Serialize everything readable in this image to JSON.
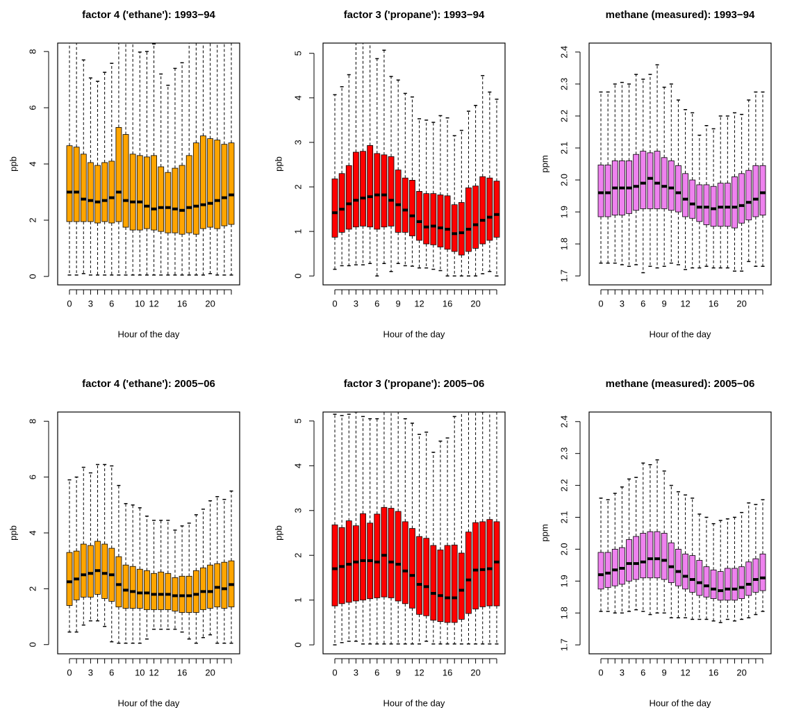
{
  "chart_data": [
    {
      "type": "boxplot",
      "title": "factor 4 ('ethane'): 1993−94",
      "x_label": "Hour of the day",
      "y_label": "ppb",
      "color": "#FFA500",
      "categories": [
        "0",
        null,
        null,
        "3",
        null,
        null,
        "6",
        null,
        null,
        null,
        "10",
        null,
        "12",
        null,
        null,
        null,
        "16",
        null,
        null,
        null,
        "20",
        null,
        null,
        null
      ],
      "ylim": [
        -0.3,
        8.3
      ],
      "yticks": [
        0,
        2,
        4,
        6,
        8
      ],
      "boxes": {
        "whisker_low": [
          0.05,
          0.05,
          0.1,
          0.05,
          0.05,
          0.05,
          0.05,
          0.05,
          0.05,
          0.05,
          0.05,
          0.05,
          0.05,
          0.05,
          0.05,
          0.05,
          0.05,
          0.05,
          0.05,
          0.05,
          0.1,
          0.05,
          0.05,
          0.05
        ],
        "q1": [
          1.95,
          1.95,
          1.95,
          1.95,
          1.9,
          1.95,
          1.9,
          1.95,
          1.75,
          1.65,
          1.65,
          1.7,
          1.65,
          1.6,
          1.55,
          1.55,
          1.5,
          1.55,
          1.5,
          1.7,
          1.75,
          1.7,
          1.8,
          1.85
        ],
        "median": [
          3.0,
          3.0,
          2.75,
          2.7,
          2.65,
          2.7,
          2.8,
          3.0,
          2.7,
          2.65,
          2.65,
          2.5,
          2.4,
          2.45,
          2.45,
          2.4,
          2.35,
          2.45,
          2.5,
          2.55,
          2.6,
          2.7,
          2.8,
          2.9
        ],
        "q3": [
          4.65,
          4.6,
          4.35,
          4.05,
          3.95,
          4.05,
          4.1,
          5.3,
          5.05,
          4.35,
          4.3,
          4.25,
          4.3,
          3.9,
          3.7,
          3.85,
          3.95,
          4.3,
          4.75,
          5.0,
          4.9,
          4.85,
          4.7,
          4.75
        ],
        "whisker_high": [
          8.6,
          8.6,
          7.7,
          7.06,
          6.94,
          7.26,
          7.58,
          8.6,
          8.6,
          8.6,
          7.98,
          8.0,
          8.27,
          7.2,
          6.8,
          7.4,
          7.6,
          8.6,
          8.6,
          8.6,
          8.6,
          8.6,
          8.6,
          8.6
        ]
      }
    },
    {
      "type": "boxplot",
      "title": "factor 3 ('propane'): 1993−94",
      "x_label": "Hour of the day",
      "y_label": "ppb",
      "color": "#FF0000",
      "categories": [
        "0",
        null,
        null,
        "3",
        null,
        null,
        "6",
        null,
        null,
        "9",
        null,
        null,
        "12",
        null,
        null,
        null,
        "16",
        null,
        null,
        null,
        "20",
        null,
        null,
        null
      ],
      "ylim": [
        -0.2,
        5.23
      ],
      "yticks": [
        0,
        1,
        2,
        3,
        4,
        5
      ],
      "boxes": {
        "whisker_low": [
          0.15,
          0.23,
          0.23,
          0.25,
          0.25,
          0.28,
          0.0,
          0.28,
          0.1,
          0.28,
          0.23,
          0.22,
          0.18,
          0.18,
          0.15,
          0.12,
          0.0,
          0.0,
          0.0,
          0.0,
          0.0,
          0.05,
          0.1,
          0.0
        ],
        "q1": [
          0.87,
          0.98,
          1.05,
          1.1,
          1.12,
          1.1,
          1.05,
          1.1,
          1.12,
          0.98,
          0.98,
          0.9,
          0.8,
          0.72,
          0.7,
          0.65,
          0.6,
          0.55,
          0.47,
          0.55,
          0.62,
          0.72,
          0.8,
          0.87
        ],
        "median": [
          1.42,
          1.5,
          1.62,
          1.7,
          1.75,
          1.78,
          1.82,
          1.82,
          1.7,
          1.6,
          1.48,
          1.35,
          1.22,
          1.1,
          1.12,
          1.08,
          1.05,
          0.95,
          0.97,
          1.05,
          1.15,
          1.25,
          1.32,
          1.38
        ],
        "q3": [
          2.18,
          2.3,
          2.48,
          2.78,
          2.8,
          2.93,
          2.75,
          2.72,
          2.68,
          2.38,
          2.2,
          2.15,
          1.9,
          1.85,
          1.85,
          1.82,
          1.8,
          1.6,
          1.65,
          1.98,
          2.02,
          2.23,
          2.2,
          2.13
        ],
        "whisker_high": [
          4.07,
          4.25,
          4.52,
          5.3,
          5.3,
          5.3,
          4.88,
          5.07,
          4.48,
          4.4,
          4.1,
          4.02,
          3.53,
          3.5,
          3.45,
          3.6,
          3.55,
          3.15,
          3.27,
          3.7,
          3.83,
          4.5,
          4.13,
          3.97
        ]
      }
    },
    {
      "type": "boxplot",
      "title": "methane (measured): 1993−94",
      "x_label": "Hour of the day",
      "y_label": "ppm",
      "color": "#EE82EE",
      "categories": [
        "0",
        null,
        null,
        "3",
        null,
        null,
        "6",
        null,
        null,
        "9",
        null,
        null,
        "12",
        null,
        null,
        null,
        "16",
        null,
        null,
        null,
        "20",
        null,
        null,
        null
      ],
      "ylim": [
        1.672,
        2.428
      ],
      "yticks": [
        1.7,
        1.8,
        1.9,
        {
          "value": 2,
          "label": "2.0"
        },
        2.1,
        2.2,
        2.3,
        2.4
      ],
      "boxes": {
        "whisker_low": [
          1.74,
          1.74,
          1.74,
          1.735,
          1.73,
          1.735,
          1.71,
          1.73,
          1.725,
          1.73,
          1.74,
          1.735,
          1.72,
          1.725,
          1.725,
          1.73,
          1.725,
          1.725,
          1.725,
          1.715,
          1.715,
          1.745,
          1.73,
          1.73
        ],
        "q1": [
          1.885,
          1.885,
          1.89,
          1.89,
          1.895,
          1.905,
          1.91,
          1.91,
          1.91,
          1.91,
          1.905,
          1.9,
          1.885,
          1.88,
          1.87,
          1.86,
          1.855,
          1.855,
          1.855,
          1.85,
          1.865,
          1.875,
          1.885,
          1.89
        ],
        "median": [
          1.96,
          1.96,
          1.975,
          1.975,
          1.975,
          1.98,
          1.99,
          2.005,
          1.99,
          1.98,
          1.975,
          1.96,
          1.94,
          1.925,
          1.915,
          1.915,
          1.91,
          1.915,
          1.915,
          1.915,
          1.92,
          1.93,
          1.94,
          1.96
        ],
        "q3": [
          2.047,
          2.047,
          2.06,
          2.06,
          2.06,
          2.08,
          2.09,
          2.085,
          2.09,
          2.07,
          2.06,
          2.045,
          2.02,
          2.0,
          1.985,
          1.985,
          1.98,
          1.99,
          1.99,
          2.01,
          2.02,
          2.03,
          2.045,
          2.045
        ],
        "whisker_high": [
          2.275,
          2.275,
          2.3,
          2.305,
          2.3,
          2.33,
          2.315,
          2.33,
          2.36,
          2.29,
          2.3,
          2.25,
          2.22,
          2.21,
          2.14,
          2.17,
          2.16,
          2.2,
          2.2,
          2.21,
          2.205,
          2.25,
          2.275,
          2.275
        ]
      }
    },
    {
      "type": "boxplot",
      "title": "factor 4 ('ethane'): 2005−06",
      "x_label": "Hour of the day",
      "y_label": "ppb",
      "color": "#FFA500",
      "categories": [
        "0",
        null,
        null,
        "3",
        null,
        null,
        "6",
        null,
        null,
        null,
        "10",
        null,
        "12",
        null,
        null,
        null,
        "16",
        null,
        null,
        null,
        "20",
        null,
        null,
        null
      ],
      "ylim": [
        -0.33,
        8.33
      ],
      "yticks": [
        0,
        2,
        4,
        6,
        8
      ],
      "boxes": {
        "whisker_low": [
          0.45,
          0.45,
          0.7,
          0.85,
          0.85,
          0.65,
          0.1,
          0.05,
          0.05,
          0.05,
          0.05,
          0.2,
          0.55,
          0.55,
          0.55,
          0.55,
          0.45,
          0.2,
          0.05,
          0.25,
          0.35,
          0.05,
          0.05,
          0.05
        ],
        "q1": [
          1.4,
          1.6,
          1.7,
          1.7,
          1.8,
          1.65,
          1.55,
          1.35,
          1.3,
          1.3,
          1.3,
          1.25,
          1.25,
          1.25,
          1.25,
          1.2,
          1.15,
          1.15,
          1.15,
          1.25,
          1.3,
          1.35,
          1.3,
          1.35
        ],
        "median": [
          2.25,
          2.35,
          2.5,
          2.55,
          2.65,
          2.55,
          2.5,
          2.15,
          1.95,
          1.9,
          1.85,
          1.85,
          1.8,
          1.8,
          1.8,
          1.75,
          1.75,
          1.75,
          1.8,
          1.9,
          1.9,
          2.05,
          2.0,
          2.15
        ],
        "q3": [
          3.3,
          3.35,
          3.6,
          3.55,
          3.7,
          3.6,
          3.45,
          3.15,
          2.85,
          2.8,
          2.7,
          2.65,
          2.55,
          2.6,
          2.55,
          2.4,
          2.45,
          2.45,
          2.65,
          2.75,
          2.85,
          2.9,
          2.95,
          3.0
        ],
        "whisker_high": [
          5.9,
          6.0,
          6.35,
          6.15,
          6.45,
          6.45,
          6.4,
          5.7,
          5.05,
          5.0,
          4.9,
          4.6,
          4.45,
          4.45,
          4.45,
          4.1,
          4.25,
          4.35,
          4.65,
          4.85,
          5.15,
          5.3,
          5.2,
          5.5
        ]
      }
    },
    {
      "type": "boxplot",
      "title": "factor 3 ('propane'): 2005−06",
      "x_label": "Hour of the day",
      "y_label": "ppb",
      "color": "#FF0000",
      "categories": [
        "0",
        null,
        null,
        "3",
        null,
        null,
        "6",
        null,
        null,
        "9",
        null,
        null,
        "12",
        null,
        null,
        null,
        "16",
        null,
        null,
        null,
        "20",
        null,
        null,
        null
      ],
      "ylim": [
        -0.2,
        5.2
      ],
      "yticks": [
        0,
        1,
        2,
        3,
        4,
        5
      ],
      "boxes": {
        "whisker_low": [
          0.0,
          0.05,
          0.08,
          0.08,
          0.02,
          0.02,
          0.02,
          0.02,
          0.02,
          0.02,
          0.02,
          0.02,
          0.02,
          0.08,
          0.02,
          0.02,
          0.02,
          0.02,
          0.02,
          0.02,
          0.02,
          0.02,
          0.02,
          0.02
        ],
        "q1": [
          0.87,
          0.92,
          0.95,
          0.98,
          1.0,
          1.03,
          1.05,
          1.07,
          1.05,
          0.98,
          0.92,
          0.82,
          0.68,
          0.65,
          0.55,
          0.52,
          0.5,
          0.5,
          0.57,
          0.7,
          0.8,
          0.85,
          0.87,
          0.87
        ],
        "median": [
          1.7,
          1.75,
          1.8,
          1.85,
          1.88,
          1.88,
          1.85,
          2.0,
          1.85,
          1.8,
          1.65,
          1.55,
          1.35,
          1.3,
          1.15,
          1.1,
          1.05,
          1.05,
          1.22,
          1.45,
          1.67,
          1.68,
          1.7,
          1.85
        ],
        "q3": [
          2.68,
          2.62,
          2.77,
          2.66,
          2.93,
          2.72,
          2.92,
          3.07,
          3.05,
          2.98,
          2.75,
          2.6,
          2.42,
          2.38,
          2.22,
          2.12,
          2.22,
          2.23,
          2.05,
          2.52,
          2.73,
          2.75,
          2.8,
          2.75
        ],
        "whisker_high": [
          5.15,
          5.12,
          5.15,
          5.2,
          5.1,
          5.05,
          5.05,
          5.3,
          5.3,
          5.3,
          5.05,
          4.95,
          4.7,
          4.75,
          4.3,
          4.55,
          4.62,
          5.1,
          5.3,
          5.3,
          5.3,
          5.2,
          5.3,
          5.3
        ]
      }
    },
    {
      "type": "boxplot",
      "title": "methane (measured): 2005−06",
      "x_label": "Hour of the day",
      "y_label": "ppm",
      "color": "#EE82EE",
      "categories": [
        "0",
        null,
        null,
        "3",
        null,
        null,
        "6",
        null,
        null,
        "9",
        null,
        null,
        "12",
        null,
        null,
        null,
        "16",
        null,
        null,
        null,
        "20",
        null,
        null,
        null
      ],
      "ylim": [
        1.672,
        2.43
      ],
      "yticks": [
        1.7,
        1.8,
        1.9,
        {
          "value": 2,
          "label": "2.0"
        },
        2.1,
        2.2,
        2.3,
        2.4
      ],
      "boxes": {
        "whisker_low": [
          1.805,
          1.805,
          1.8,
          1.8,
          1.805,
          1.81,
          1.805,
          1.795,
          1.8,
          1.8,
          1.785,
          1.785,
          1.785,
          1.78,
          1.78,
          1.78,
          1.775,
          1.77,
          1.78,
          1.775,
          1.78,
          1.785,
          1.795,
          1.805
        ],
        "q1": [
          1.875,
          1.88,
          1.885,
          1.89,
          1.9,
          1.905,
          1.91,
          1.91,
          1.91,
          1.905,
          1.895,
          1.885,
          1.875,
          1.865,
          1.855,
          1.85,
          1.845,
          1.84,
          1.84,
          1.84,
          1.845,
          1.855,
          1.865,
          1.87
        ],
        "median": [
          1.92,
          1.925,
          1.935,
          1.94,
          1.955,
          1.955,
          1.96,
          1.97,
          1.97,
          1.965,
          1.945,
          1.93,
          1.915,
          1.905,
          1.895,
          1.885,
          1.875,
          1.87,
          1.875,
          1.875,
          1.88,
          1.89,
          1.905,
          1.91
        ],
        "q3": [
          1.99,
          1.99,
          2.0,
          2.005,
          2.03,
          2.04,
          2.05,
          2.055,
          2.055,
          2.05,
          2.02,
          2.0,
          1.985,
          1.98,
          1.965,
          1.945,
          1.935,
          1.93,
          1.94,
          1.94,
          1.945,
          1.96,
          1.97,
          1.985
        ],
        "whisker_high": [
          2.16,
          2.155,
          2.175,
          2.195,
          2.22,
          2.225,
          2.27,
          2.265,
          2.28,
          2.245,
          2.2,
          2.18,
          2.17,
          2.16,
          2.11,
          2.1,
          2.08,
          2.09,
          2.095,
          2.1,
          2.115,
          2.145,
          2.14,
          2.155
        ]
      }
    }
  ]
}
